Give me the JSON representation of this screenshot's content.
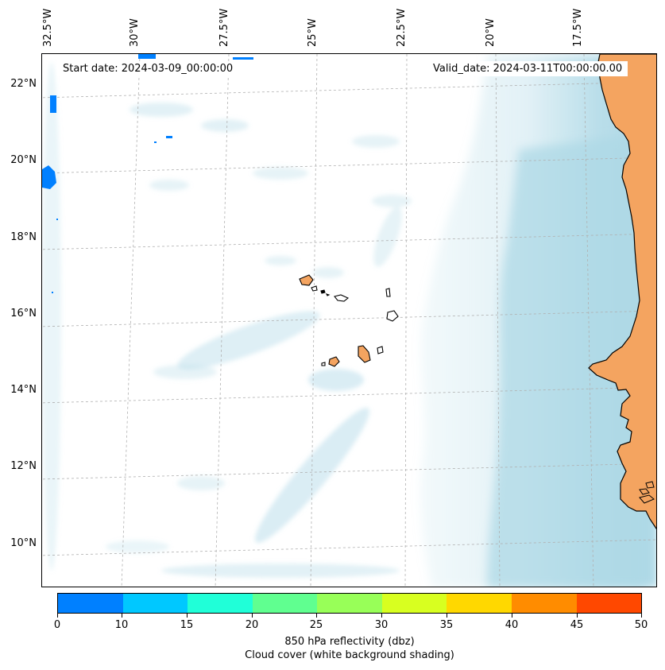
{
  "map": {
    "start_date": "Start date: 2024-03-09_00:00:00",
    "valid_date": "Valid_date: 2024-03-11T00:00:00.00",
    "lon_labels": [
      "32.5°W",
      "30°W",
      "27.5°W",
      "25°W",
      "22.5°W",
      "20°W",
      "17.5°W"
    ],
    "lat_labels": [
      "22°N",
      "20°N",
      "18°N",
      "16°N",
      "14°N",
      "12°N",
      "10°N"
    ],
    "colors": {
      "cloud": "#add8e6",
      "land": "#f4a460",
      "coast": "#000000",
      "grid": "#b0b0b0"
    }
  },
  "colorbar": {
    "ticks": [
      "0",
      "10",
      "15",
      "20",
      "25",
      "30",
      "35",
      "40",
      "45",
      "50"
    ],
    "colors": [
      "#0080ff",
      "#00c8ff",
      "#20ffd8",
      "#60ff90",
      "#98ff58",
      "#d8ff20",
      "#ffd800",
      "#ff8c00",
      "#ff4800"
    ],
    "title_line1": "850 hPa reflectivity (dbz)",
    "title_line2": "Cloud cover (white background shading)"
  }
}
